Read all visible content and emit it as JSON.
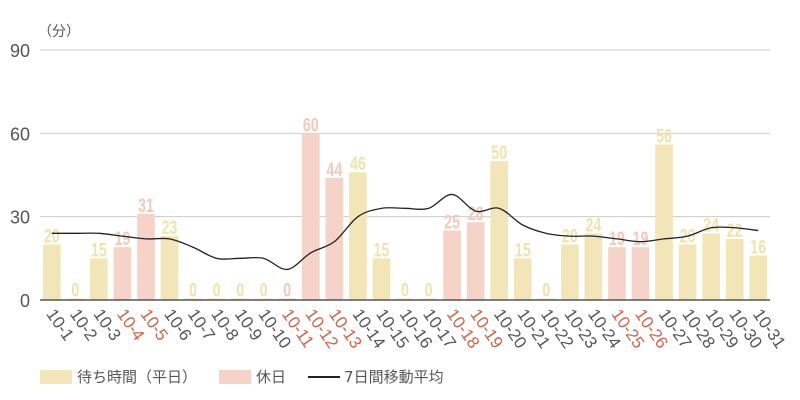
{
  "chart_data": {
    "type": "bar",
    "unit_label": "（分）",
    "categories": [
      "10-1",
      "10-2",
      "10-3",
      "10-4",
      "10-5",
      "10-6",
      "10-7",
      "10-8",
      "10-9",
      "10-10",
      "10-11",
      "10-12",
      "10-13",
      "10-14",
      "10-15",
      "10-16",
      "10-17",
      "10-18",
      "10-19",
      "10-20",
      "10-21",
      "10-22",
      "10-23",
      "10-24",
      "10-25",
      "10-26",
      "10-27",
      "10-28",
      "10-29",
      "10-30",
      "10-31"
    ],
    "values": [
      20,
      0,
      15,
      19,
      31,
      23,
      0,
      0,
      0,
      0,
      0,
      60,
      44,
      46,
      15,
      0,
      0,
      25,
      28,
      50,
      15,
      0,
      20,
      24,
      19,
      19,
      56,
      20,
      24,
      22,
      16
    ],
    "holidays": [
      3,
      4,
      10,
      11,
      12,
      17,
      18,
      24,
      25
    ],
    "moving_average": [
      24,
      24,
      24,
      23,
      22,
      22,
      19,
      15,
      15,
      15,
      11,
      17,
      21,
      30,
      33,
      33,
      33,
      38,
      32,
      33,
      27,
      24,
      23,
      23,
      22,
      21,
      22,
      23,
      26,
      26,
      25
    ],
    "series": [
      {
        "name": "待ち時間（平日）",
        "color": "#f2e6b8"
      },
      {
        "name": "休日",
        "color": "#f5d3c8"
      },
      {
        "name": "7日間移動平均",
        "color": "#222222"
      }
    ],
    "ylim": [
      0,
      90
    ],
    "yticks": [
      0,
      30,
      60,
      90
    ],
    "grid": true,
    "legend_position": "bottom",
    "colors": {
      "weekday_label": "#f0e2ae",
      "holiday_label": "#f2c9bb",
      "holiday_tick": "#c8654a",
      "tick": "#555555"
    }
  },
  "legend": {
    "weekday": "待ち時間（平日）",
    "holiday": "休日",
    "avg": "7日間移動平均"
  }
}
